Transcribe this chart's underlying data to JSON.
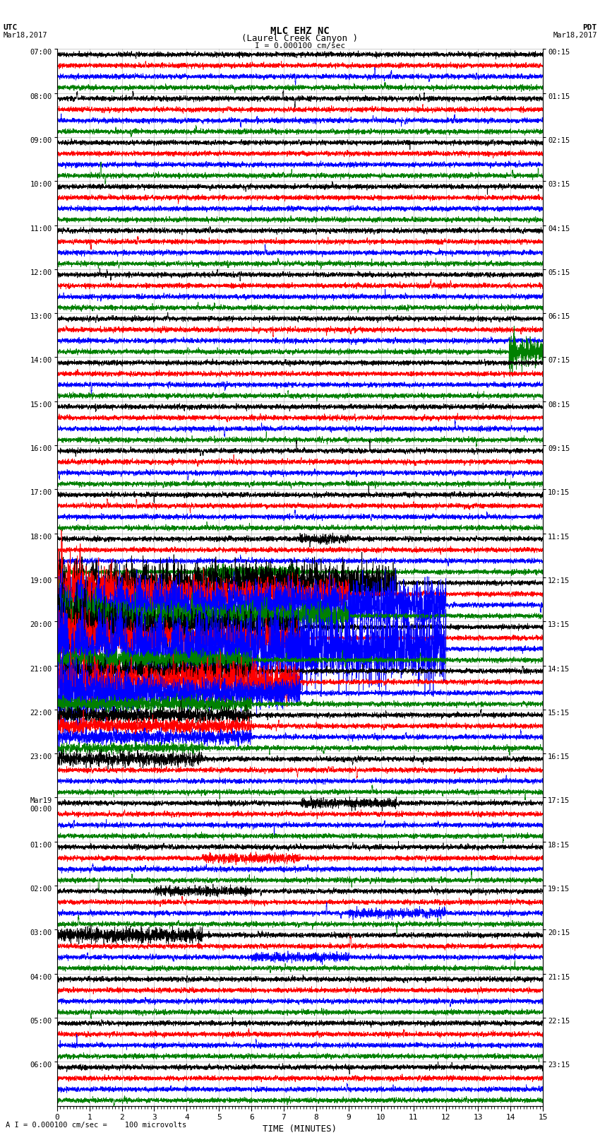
{
  "title_line1": "MLC EHZ NC",
  "title_line2": "(Laurel Creek Canyon )",
  "scale_label": "I = 0.000100 cm/sec",
  "footer_label": "A I = 0.000100 cm/sec =    100 microvolts",
  "left_header_line1": "UTC",
  "left_header_line2": "Mar18,2017",
  "right_header_line1": "PDT",
  "right_header_line2": "Mar18,2017",
  "xlabel": "TIME (MINUTES)",
  "utc_labels": [
    "07:00",
    "08:00",
    "09:00",
    "10:00",
    "11:00",
    "12:00",
    "13:00",
    "14:00",
    "15:00",
    "16:00",
    "17:00",
    "18:00",
    "19:00",
    "20:00",
    "21:00",
    "22:00",
    "23:00",
    "Mar19\n00:00",
    "01:00",
    "02:00",
    "03:00",
    "04:00",
    "05:00",
    "06:00"
  ],
  "pdt_labels": [
    "00:15",
    "01:15",
    "02:15",
    "03:15",
    "04:15",
    "05:15",
    "06:15",
    "07:15",
    "08:15",
    "09:15",
    "10:15",
    "11:15",
    "12:15",
    "13:15",
    "14:15",
    "15:15",
    "16:15",
    "17:15",
    "18:15",
    "19:15",
    "20:15",
    "21:15",
    "22:15",
    "23:15"
  ],
  "trace_colors": [
    "black",
    "red",
    "blue",
    "green"
  ],
  "n_groups": 24,
  "x_min": 0,
  "x_max": 15,
  "x_ticks": [
    0,
    1,
    2,
    3,
    4,
    5,
    6,
    7,
    8,
    9,
    10,
    11,
    12,
    13,
    14,
    15
  ],
  "bg_color": "white",
  "grid_color": "#888888",
  "seismo_lw": 0.5,
  "fig_width": 8.5,
  "fig_height": 16.13,
  "dpi": 100
}
